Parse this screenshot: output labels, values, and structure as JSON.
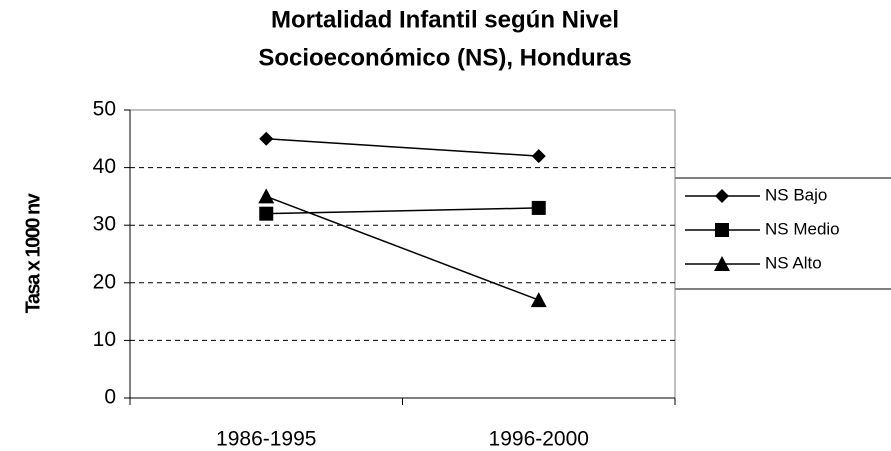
{
  "chart_data": {
    "type": "line",
    "title": [
      "Mortalidad Infantil según Nivel",
      "Socioeconómico (NS), Honduras"
    ],
    "y_label": "Tasa x 1000 nv",
    "categories": [
      "1986-1995",
      "1996-2000"
    ],
    "series": [
      {
        "name": "NS Bajo",
        "color": "#000000",
        "marker": "diamond",
        "values": [
          45,
          42
        ]
      },
      {
        "name": "NS Medio",
        "color": "#000000",
        "marker": "square",
        "values": [
          32,
          33
        ]
      },
      {
        "name": "NS Alto",
        "color": "#000000",
        "marker": "triangle",
        "values": [
          35,
          17
        ]
      }
    ],
    "ylim": [
      0,
      50
    ],
    "yticks": [
      0,
      10,
      20,
      30,
      40,
      50
    ],
    "grid": true,
    "legend": "right"
  }
}
